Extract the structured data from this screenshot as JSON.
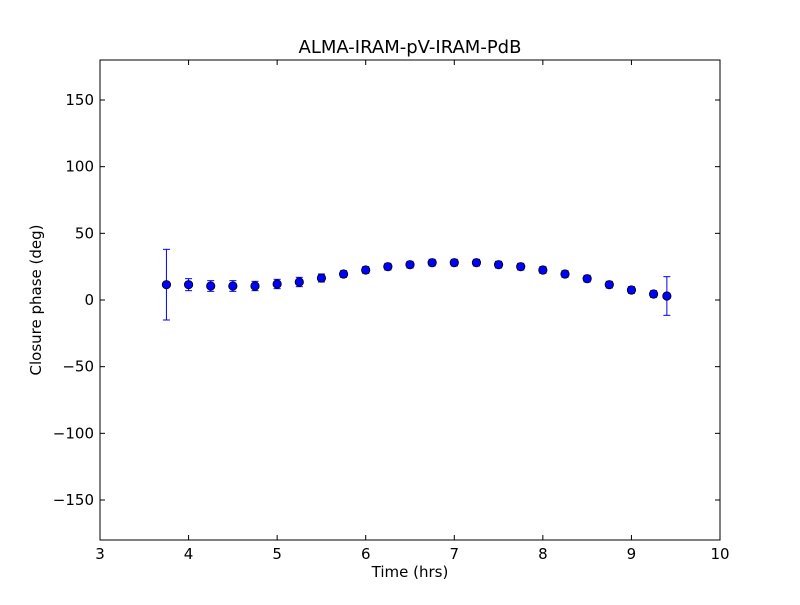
{
  "chart_data": {
    "type": "scatter",
    "title": "ALMA-IRAM-pV-IRAM-PdB",
    "xlabel": "Time (hrs)",
    "ylabel": "Closure phase (deg)",
    "xlim": [
      3,
      10
    ],
    "ylim": [
      -180,
      180
    ],
    "xticks": [
      3,
      4,
      5,
      6,
      7,
      8,
      9,
      10
    ],
    "xtick_labels": [
      "3",
      "4",
      "5",
      "6",
      "7",
      "8",
      "9",
      "10"
    ],
    "yticks": [
      -150,
      -100,
      -50,
      0,
      50,
      100,
      150
    ],
    "ytick_labels": [
      "−150",
      "−100",
      "−50",
      "0",
      "50",
      "100",
      "150"
    ],
    "grid": false,
    "marker_color": "#0000ff",
    "errorbar_color": "#0000ff",
    "points": [
      {
        "x": 3.75,
        "y": 11.5,
        "err": 26.5
      },
      {
        "x": 4.0,
        "y": 11.5,
        "err": 4.5
      },
      {
        "x": 4.25,
        "y": 10.5,
        "err": 4.0
      },
      {
        "x": 4.5,
        "y": 10.5,
        "err": 4.0
      },
      {
        "x": 4.75,
        "y": 10.5,
        "err": 3.5
      },
      {
        "x": 5.0,
        "y": 12.0,
        "err": 3.5
      },
      {
        "x": 5.25,
        "y": 13.5,
        "err": 3.5
      },
      {
        "x": 5.5,
        "y": 16.5,
        "err": 3.0
      },
      {
        "x": 5.75,
        "y": 19.5,
        "err": 2.5
      },
      {
        "x": 6.0,
        "y": 22.5,
        "err": 2.5
      },
      {
        "x": 6.25,
        "y": 25.0,
        "err": 2.5
      },
      {
        "x": 6.5,
        "y": 26.5,
        "err": 2.5
      },
      {
        "x": 6.75,
        "y": 28.0,
        "err": 2.5
      },
      {
        "x": 7.0,
        "y": 28.0,
        "err": 2.5
      },
      {
        "x": 7.25,
        "y": 28.0,
        "err": 2.5
      },
      {
        "x": 7.5,
        "y": 26.5,
        "err": 2.5
      },
      {
        "x": 7.75,
        "y": 25.0,
        "err": 2.5
      },
      {
        "x": 8.0,
        "y": 22.5,
        "err": 2.5
      },
      {
        "x": 8.25,
        "y": 19.5,
        "err": 2.5
      },
      {
        "x": 8.5,
        "y": 16.0,
        "err": 2.5
      },
      {
        "x": 8.75,
        "y": 11.5,
        "err": 2.5
      },
      {
        "x": 9.0,
        "y": 7.5,
        "err": 2.5
      },
      {
        "x": 9.25,
        "y": 4.5,
        "err": 2.5
      },
      {
        "x": 9.4,
        "y": 3.0,
        "err": 14.5
      }
    ]
  }
}
